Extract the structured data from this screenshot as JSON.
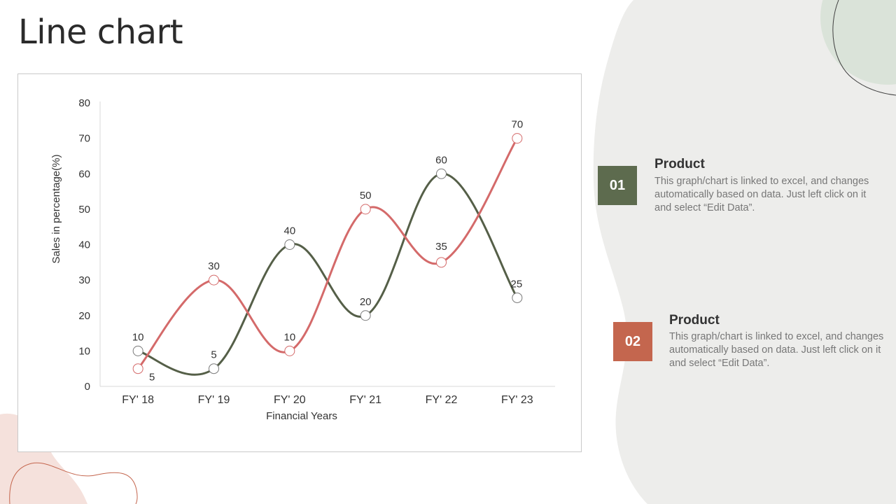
{
  "title": "Line chart",
  "colors": {
    "series_dark": "#555f48",
    "series_red": "#d46a6a",
    "badge_1": "#5d6b4e",
    "badge_2": "#c4664e",
    "blob_gray": "#ededeb",
    "blob_green": "#dae3d9",
    "blob_pink": "#f5e1dc",
    "outline_red": "#c4664e",
    "outline_dark": "#3f3f3f"
  },
  "info_cards": [
    {
      "number": "01",
      "title": "Product",
      "text": "This graph/chart is linked to excel, and changes automatically based on data. Just left click on it and select “Edit Data”."
    },
    {
      "number": "02",
      "title": "Product",
      "text": "This graph/chart is linked to excel, and changes automatically based on data. Just left click on it and select “Edit Data”."
    }
  ],
  "chart_data": {
    "type": "line",
    "categories": [
      "FY' 18",
      "FY' 19",
      "FY' 20",
      "FY' 21",
      "FY' 22",
      "FY' 23"
    ],
    "series": [
      {
        "color": "#555f48",
        "values": [
          10,
          5,
          40,
          20,
          60,
          25
        ]
      },
      {
        "color": "#d46a6a",
        "values": [
          5,
          30,
          10,
          50,
          35,
          70
        ]
      }
    ],
    "xlabel": "Financial Years",
    "ylabel": "Sales in percentage(%)",
    "ylim": [
      0,
      80
    ],
    "yticks": [
      0,
      10,
      20,
      30,
      40,
      50,
      60,
      70,
      80
    ],
    "smooth": true,
    "data_labels": true,
    "legend": "none",
    "grid": false
  }
}
